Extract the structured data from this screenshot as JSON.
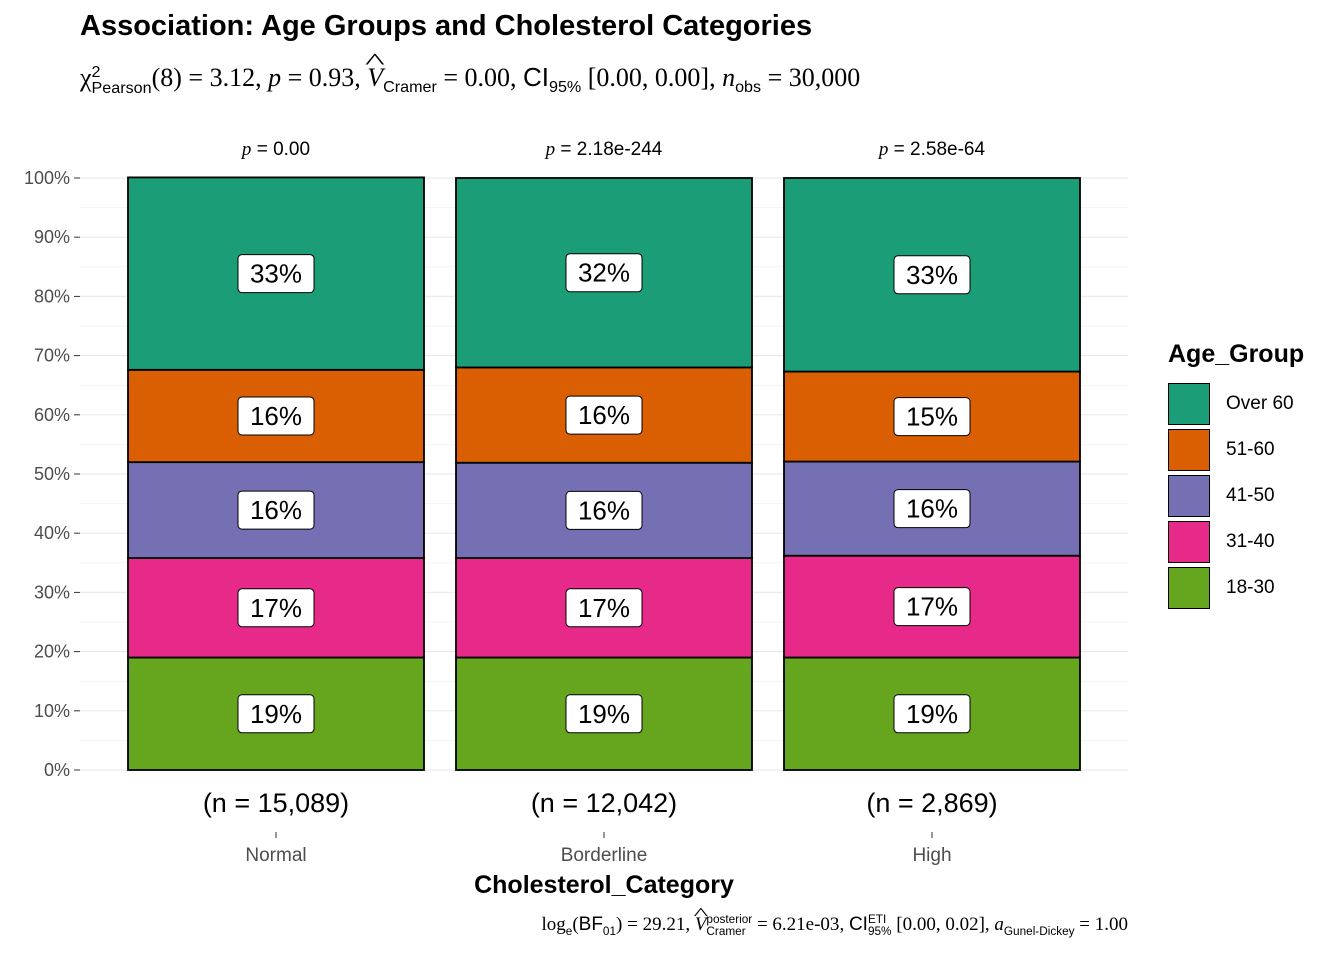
{
  "chart_data": {
    "type": "bar",
    "stacked": true,
    "percent": true,
    "title": "Association: Age Groups and Cholesterol Categories",
    "subtitle": {
      "stat_label": "Pearson",
      "df": "(8)",
      "stat_value": "3.12",
      "p_value": "0.93",
      "effsize_label": "Cramer",
      "effsize_value": "0.00",
      "ci_level": "95%",
      "ci": "[0.00, 0.00]",
      "n_obs": "30,000"
    },
    "caption": {
      "bf_sub": "01",
      "bf_value": "29.21",
      "post_sup": "posterior",
      "post_sub": "Cramer",
      "post_value": "6.21e-03",
      "ci_sup": "ETI",
      "ci_sub": "95%",
      "ci": "[0.00, 0.02]",
      "a_sub": "Gunel-Dickey",
      "a_value": "1.00"
    },
    "xlabel": "Cholesterol_Category",
    "ylabel": "",
    "categories": [
      "Normal",
      "Borderline",
      "High"
    ],
    "counts": [
      "(n = 15,089)",
      "(n = 12,042)",
      "(n = 2,869)"
    ],
    "p_labels": [
      "0.00",
      "2.18e-244",
      "2.58e-64"
    ],
    "y_ticks": [
      "0%",
      "10%",
      "20%",
      "30%",
      "40%",
      "50%",
      "60%",
      "70%",
      "80%",
      "90%",
      "100%"
    ],
    "ylim": [
      0,
      1
    ],
    "legend_title": "Age_Group",
    "legend_position": "right",
    "series": [
      {
        "name": "18-30",
        "color": "#66A61E",
        "values": [
          0.19,
          0.19,
          0.19
        ],
        "labels": [
          "19%",
          "19%",
          "19%"
        ]
      },
      {
        "name": "31-40",
        "color": "#E7298A",
        "values": [
          0.168,
          0.168,
          0.172
        ],
        "labels": [
          "17%",
          "17%",
          "17%"
        ]
      },
      {
        "name": "41-50",
        "color": "#7570B3",
        "values": [
          0.162,
          0.161,
          0.159
        ],
        "labels": [
          "16%",
          "16%",
          "16%"
        ]
      },
      {
        "name": "51-60",
        "color": "#D95F02",
        "values": [
          0.156,
          0.161,
          0.152
        ],
        "labels": [
          "16%",
          "16%",
          "15%"
        ]
      },
      {
        "name": "Over 60",
        "color": "#1B9E77",
        "values": [
          0.325,
          0.32,
          0.327
        ],
        "labels": [
          "33%",
          "32%",
          "33%"
        ]
      }
    ],
    "grid": true
  }
}
